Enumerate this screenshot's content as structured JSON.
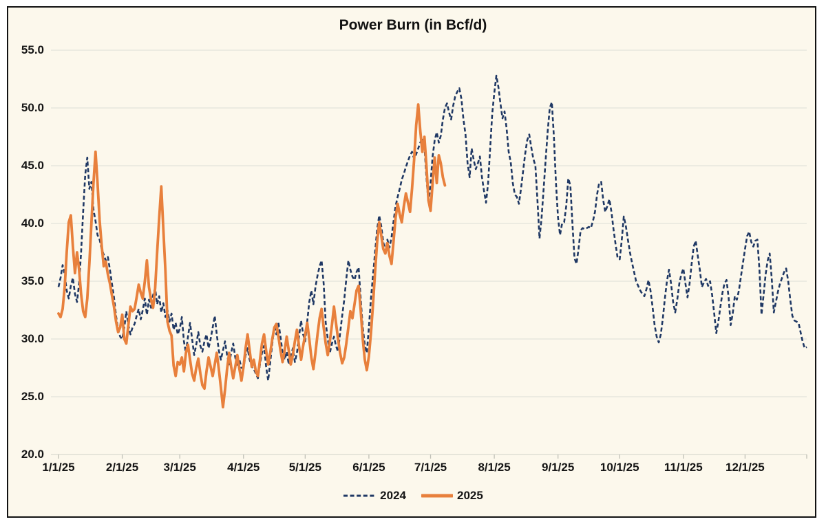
{
  "title": "Power Burn (in Bcf/d)",
  "legend": [
    {
      "label": "2024",
      "color": "#1F3864",
      "line_style": "dashed"
    },
    {
      "label": "2025",
      "color": "#E8803C",
      "line_style": "solid"
    }
  ],
  "colors": {
    "background": "#FCF8EC",
    "frame_border": "#111111",
    "gridline": "#E3E3DA",
    "axis_line": "#D9D9CF",
    "tick": "#BFBFB6",
    "text": "#151515",
    "series_2024": "#1F3864",
    "series_2025": "#E8803C"
  },
  "chart_data": {
    "type": "line",
    "title": "Power Burn (in Bcf/d)",
    "xlabel": "",
    "ylabel": "",
    "ylim": [
      20.0,
      55.0
    ],
    "grid": "horizontal",
    "legend_position": "bottom-center",
    "y_ticks": [
      {
        "value": 55,
        "label": "55.0"
      },
      {
        "value": 50,
        "label": "50.0"
      },
      {
        "value": 45,
        "label": "45.0"
      },
      {
        "value": 40,
        "label": "40.0"
      },
      {
        "value": 35,
        "label": "35.0"
      },
      {
        "value": 30,
        "label": "30.0"
      },
      {
        "value": 25,
        "label": "25.0"
      },
      {
        "value": 20,
        "label": "20.0"
      }
    ],
    "x_tick_labels": [
      "1/1/25",
      "2/1/25",
      "3/1/25",
      "4/1/25",
      "5/1/25",
      "6/1/25",
      "7/1/25",
      "8/1/25",
      "9/1/25",
      "10/1/25",
      "11/1/25",
      "12/1/25"
    ],
    "month_start_days": [
      0,
      31,
      59,
      90,
      120,
      151,
      181,
      212,
      243,
      273,
      304,
      334
    ],
    "days_in_year": 365,
    "x_unit": "day-of-year (daily values starting 1/1)",
    "series": [
      {
        "name": "2024",
        "color": "#1F3864",
        "line_style": "dashed",
        "start_day": 0,
        "values": [
          34.5,
          35.3,
          36.4,
          35.6,
          34.2,
          33.5,
          34.6,
          35.3,
          33.9,
          33.2,
          34.8,
          37.5,
          41.0,
          44.2,
          45.7,
          43.0,
          43.6,
          41.2,
          40.2,
          39.0,
          38.6,
          37.8,
          37.3,
          36.8,
          37.1,
          36.0,
          34.8,
          33.6,
          32.0,
          30.8,
          30.2,
          30.0,
          31.0,
          32.4,
          31.2,
          30.4,
          31.0,
          31.3,
          32.0,
          32.6,
          31.7,
          32.5,
          33.5,
          32.1,
          33.4,
          32.7,
          33.8,
          34.4,
          33.0,
          33.7,
          32.3,
          33.1,
          31.9,
          32.5,
          31.5,
          32.2,
          30.8,
          31.4,
          30.4,
          30.9,
          31.9,
          29.8,
          28.8,
          30.2,
          31.4,
          30.0,
          28.6,
          29.5,
          30.6,
          29.4,
          28.9,
          29.8,
          30.4,
          29.2,
          30.0,
          31.0,
          32.0,
          30.4,
          29.0,
          28.2,
          29.0,
          29.8,
          28.6,
          27.8,
          28.8,
          29.6,
          28.4,
          27.6,
          28.2,
          27.5,
          27.5,
          28.6,
          29.2,
          28.2,
          27.6,
          27.4,
          27.0,
          26.6,
          27.8,
          28.8,
          29.4,
          27.6,
          26.4,
          28.0,
          29.6,
          31.1,
          30.4,
          31.4,
          30.2,
          28.8,
          28.2,
          28.9,
          27.8,
          28.4,
          29.2,
          28.0,
          28.8,
          30.2,
          31.6,
          30.4,
          29.8,
          31.5,
          33.2,
          34.2,
          33.0,
          34.5,
          35.5,
          36.3,
          36.8,
          34.8,
          31.4,
          30.0,
          28.8,
          29.6,
          30.2,
          29.4,
          28.9,
          30.5,
          32.0,
          33.4,
          35.2,
          36.8,
          36.0,
          35.4,
          35.1,
          35.8,
          36.2,
          33.5,
          31.0,
          29.5,
          28.8,
          31.0,
          33.5,
          35.5,
          37.5,
          39.5,
          40.7,
          39.8,
          38.4,
          37.6,
          38.6,
          37.9,
          38.8,
          40.2,
          41.5,
          42.3,
          43.0,
          43.8,
          44.3,
          44.9,
          45.4,
          45.9,
          46.2,
          45.6,
          46.0,
          46.5,
          47.0,
          47.4,
          46.7,
          44.0,
          41.7,
          43.5,
          45.8,
          47.2,
          47.9,
          47.0,
          47.6,
          49.0,
          50.0,
          50.4,
          49.6,
          49.0,
          50.2,
          51.0,
          51.4,
          51.7,
          50.8,
          49.0,
          47.7,
          45.2,
          44.0,
          46.5,
          45.5,
          44.7,
          45.2,
          45.8,
          44.0,
          42.8,
          41.8,
          43.5,
          46.5,
          49.5,
          51.3,
          52.8,
          51.8,
          50.4,
          49.1,
          49.7,
          48.2,
          46.2,
          45.3,
          43.5,
          42.5,
          42.3,
          41.7,
          43.0,
          44.5,
          46.0,
          47.2,
          47.7,
          46.6,
          45.6,
          45.0,
          42.0,
          38.7,
          40.5,
          43.0,
          45.5,
          48.0,
          50.0,
          50.5,
          47.5,
          43.5,
          40.5,
          39.0,
          40.0,
          40.1,
          41.5,
          43.9,
          43.3,
          40.0,
          37.0,
          36.5,
          37.8,
          39.4,
          39.6,
          39.5,
          39.6,
          39.7,
          39.6,
          40.2,
          41.0,
          42.5,
          43.5,
          43.6,
          42.0,
          41.0,
          41.5,
          42.1,
          41.0,
          39.5,
          38.2,
          37.0,
          36.9,
          38.5,
          40.6,
          39.8,
          38.6,
          37.5,
          36.6,
          35.8,
          35.0,
          34.6,
          34.2,
          33.9,
          33.7,
          34.3,
          35.1,
          34.2,
          32.8,
          31.2,
          30.2,
          29.7,
          30.4,
          31.8,
          33.5,
          35.0,
          36.0,
          34.8,
          33.2,
          32.3,
          33.4,
          34.8,
          35.6,
          36.1,
          34.8,
          33.6,
          34.8,
          36.5,
          38.0,
          38.5,
          37.2,
          36.0,
          34.5,
          34.9,
          35.2,
          34.6,
          35.0,
          33.8,
          32.2,
          30.5,
          31.5,
          32.8,
          34.0,
          34.8,
          35.1,
          33.6,
          31.2,
          32.2,
          33.7,
          33.4,
          34.2,
          35.4,
          36.6,
          37.8,
          38.9,
          39.3,
          38.4,
          38.0,
          38.5,
          38.6,
          36.0,
          32.1,
          33.8,
          35.6,
          36.8,
          37.4,
          35.2,
          32.3,
          33.2,
          34.1,
          34.8,
          35.3,
          35.8,
          36.1,
          35.0,
          33.4,
          32.0,
          31.6,
          31.5,
          31.4,
          30.6,
          29.8,
          29.2,
          29.3
        ]
      },
      {
        "name": "2025",
        "color": "#E8803C",
        "line_style": "solid",
        "start_day": 0,
        "values": [
          32.2,
          31.9,
          32.6,
          34.5,
          37.5,
          40.1,
          40.7,
          38.0,
          35.7,
          37.5,
          36.0,
          33.9,
          32.4,
          31.9,
          33.5,
          36.5,
          40.0,
          43.5,
          46.2,
          43.5,
          40.3,
          38.1,
          36.3,
          36.7,
          35.6,
          34.8,
          33.8,
          32.8,
          31.5,
          30.6,
          31.0,
          32.1,
          30.0,
          29.6,
          31.2,
          32.8,
          32.4,
          32.6,
          33.6,
          34.7,
          34.0,
          33.5,
          35.0,
          36.8,
          34.5,
          33.4,
          32.7,
          34.4,
          37.5,
          40.5,
          43.2,
          39.5,
          35.9,
          31.5,
          30.7,
          30.3,
          27.7,
          26.8,
          28.0,
          27.8,
          28.4,
          27.2,
          28.8,
          29.5,
          28.2,
          27.0,
          26.4,
          27.5,
          28.3,
          27.0,
          26.0,
          25.7,
          27.2,
          28.4,
          27.6,
          26.8,
          27.8,
          28.8,
          27.4,
          25.8,
          24.1,
          25.6,
          27.4,
          28.8,
          27.6,
          26.6,
          27.6,
          28.6,
          27.4,
          26.4,
          27.6,
          29.2,
          30.4,
          29.0,
          27.6,
          28.2,
          27.2,
          26.8,
          28.2,
          29.6,
          30.4,
          29.0,
          27.8,
          28.8,
          30.0,
          31.0,
          31.3,
          30.2,
          29.0,
          28.0,
          29.0,
          30.2,
          29.0,
          27.8,
          28.6,
          29.8,
          30.8,
          29.4,
          28.2,
          29.4,
          30.4,
          31.4,
          30.0,
          28.4,
          27.4,
          28.8,
          30.4,
          31.8,
          32.6,
          31.0,
          29.6,
          28.6,
          29.8,
          31.2,
          32.8,
          31.4,
          30.0,
          28.8,
          27.9,
          28.4,
          29.6,
          31.0,
          32.4,
          31.8,
          33.0,
          34.2,
          34.6,
          32.5,
          30.0,
          28.2,
          27.3,
          28.5,
          30.5,
          33.0,
          35.8,
          38.4,
          40.1,
          39.0,
          37.8,
          37.4,
          38.3,
          37.2,
          36.5,
          38.5,
          40.5,
          41.7,
          40.8,
          40.1,
          41.5,
          42.6,
          41.8,
          41.0,
          43.0,
          45.5,
          48.5,
          50.3,
          48.0,
          46.2,
          47.5,
          45.0,
          42.0,
          41.1,
          43.5,
          45.7,
          43.5,
          45.9,
          45.2,
          44.0,
          43.3
        ]
      }
    ]
  }
}
